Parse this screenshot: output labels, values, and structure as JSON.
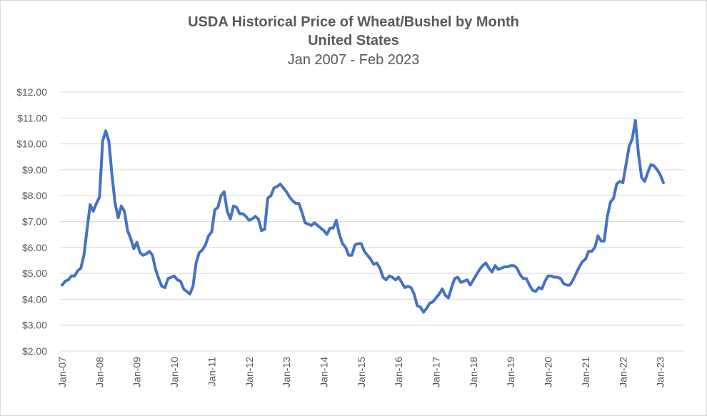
{
  "chart_data": {
    "type": "line",
    "title": "USDA Historical Price of Wheat/Bushel by Month",
    "subtitle": "United States",
    "date_range": "Jan 2007 - Feb 2023",
    "xlabel": "",
    "ylabel": "",
    "ylim": [
      2,
      12
    ],
    "y_ticks": [
      "$2.00",
      "$3.00",
      "$4.00",
      "$5.00",
      "$6.00",
      "$7.00",
      "$8.00",
      "$9.00",
      "$10.00",
      "$11.00",
      "$12.00"
    ],
    "x_ticks": [
      "Jan-07",
      "Jan-08",
      "Jan-09",
      "Jan-10",
      "Jan-11",
      "Jan-12",
      "Jan-13",
      "Jan-14",
      "Jan-15",
      "Jan-16",
      "Jan-17",
      "Jan-18",
      "Jan-19",
      "Jan-20",
      "Jan-21",
      "Jan-22",
      "Jan-23"
    ],
    "grid": "horizontal",
    "legend": "none",
    "line_color": "#4472C4",
    "series": [
      {
        "values": [
          4.55,
          4.7,
          4.75,
          4.9,
          4.9,
          5.1,
          5.2,
          5.7,
          6.7,
          7.65,
          7.4,
          7.7,
          7.95,
          10.1,
          10.5,
          10.1,
          8.8,
          7.7,
          7.15,
          7.6,
          7.4,
          6.65,
          6.35,
          5.95,
          6.2,
          5.8,
          5.7,
          5.75,
          5.85,
          5.7,
          5.15,
          4.8,
          4.5,
          4.45,
          4.8,
          4.85,
          4.9,
          4.75,
          4.7,
          4.4,
          4.3,
          4.2,
          4.5,
          5.4,
          5.8,
          5.9,
          6.1,
          6.45,
          6.6,
          7.45,
          7.55,
          8.0,
          8.15,
          7.4,
          7.1,
          7.6,
          7.55,
          7.3,
          7.3,
          7.2,
          7.05,
          7.1,
          7.2,
          7.1,
          6.65,
          6.7,
          7.9,
          8.0,
          8.3,
          8.35,
          8.45,
          8.3,
          8.15,
          7.95,
          7.8,
          7.7,
          7.7,
          7.35,
          6.95,
          6.9,
          6.85,
          6.95,
          6.85,
          6.75,
          6.65,
          6.5,
          6.75,
          6.75,
          7.05,
          6.5,
          6.15,
          6.0,
          5.7,
          5.7,
          6.1,
          6.15,
          6.15,
          5.85,
          5.7,
          5.55,
          5.35,
          5.4,
          5.2,
          4.85,
          4.75,
          4.9,
          4.85,
          4.75,
          4.85,
          4.65,
          4.45,
          4.5,
          4.45,
          4.2,
          3.75,
          3.7,
          3.5,
          3.65,
          3.85,
          3.9,
          4.05,
          4.2,
          4.4,
          4.15,
          4.05,
          4.45,
          4.8,
          4.85,
          4.65,
          4.7,
          4.75,
          4.55,
          4.75,
          4.95,
          5.15,
          5.3,
          5.4,
          5.2,
          5.05,
          5.3,
          5.15,
          5.2,
          5.25,
          5.25,
          5.3,
          5.3,
          5.2,
          4.95,
          4.8,
          4.8,
          4.55,
          4.35,
          4.3,
          4.45,
          4.4,
          4.7,
          4.9,
          4.9,
          4.85,
          4.85,
          4.8,
          4.6,
          4.55,
          4.55,
          4.75,
          5.0,
          5.25,
          5.45,
          5.55,
          5.85,
          5.85,
          6.0,
          6.45,
          6.25,
          6.25,
          7.2,
          7.75,
          7.9,
          8.45,
          8.55,
          8.5,
          9.2,
          9.9,
          10.2,
          10.9,
          9.6,
          8.7,
          8.55,
          8.9,
          9.2,
          9.15,
          9.0,
          8.8,
          8.5
        ]
      }
    ]
  }
}
